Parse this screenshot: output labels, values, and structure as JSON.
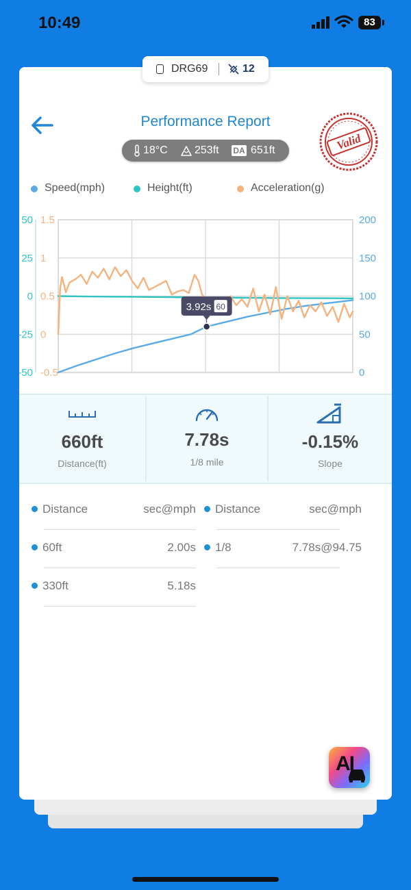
{
  "status_bar": {
    "time": "10:49",
    "battery": "83"
  },
  "device": {
    "name": "DRG69",
    "link_count": "12"
  },
  "header": {
    "title": "Performance Report",
    "stamp_text": "Valid"
  },
  "conditions": {
    "temperature": "18°C",
    "altitude": "253ft",
    "da_label": "DA",
    "density_altitude": "651ft"
  },
  "legend": [
    {
      "label": "Speed(mph)",
      "color": "#5aaae6"
    },
    {
      "label": "Height(ft)",
      "color": "#2ec4c4"
    },
    {
      "label": "Acceleration(g)",
      "color": "#f4b27e"
    }
  ],
  "chart_data": {
    "type": "line",
    "title": "",
    "xlabel": "",
    "axes": {
      "height_left": {
        "ticks": [
          "50",
          "25",
          "0",
          "-25",
          "-50"
        ],
        "range": [
          -50,
          50
        ],
        "color": "#2ec4c4"
      },
      "accel_left": {
        "ticks": [
          "1.5",
          "1",
          "0.5",
          "0",
          "-0.5"
        ],
        "range": [
          -0.5,
          1.5
        ],
        "color": "#f4b27e"
      },
      "speed_right": {
        "ticks": [
          "200",
          "150",
          "100",
          "50",
          "0"
        ],
        "range": [
          0,
          200
        ],
        "color": "#5aaae6"
      }
    },
    "x_range": [
      0,
      7.78
    ],
    "grid": true,
    "series": [
      {
        "name": "Speed(mph)",
        "axis": "speed_right",
        "color": "#5aaae6",
        "points": [
          [
            0,
            0
          ],
          [
            0.5,
            9
          ],
          [
            1,
            17
          ],
          [
            1.5,
            25
          ],
          [
            2,
            32
          ],
          [
            2.5,
            38
          ],
          [
            3,
            44
          ],
          [
            3.5,
            50
          ],
          [
            3.92,
            60
          ],
          [
            4.5,
            67
          ],
          [
            5,
            73
          ],
          [
            5.5,
            78
          ],
          [
            6,
            83
          ],
          [
            6.5,
            87
          ],
          [
            7,
            90
          ],
          [
            7.5,
            93
          ],
          [
            7.78,
            94.75
          ]
        ]
      },
      {
        "name": "Height(ft)",
        "axis": "height_left",
        "color": "#2ec4c4",
        "points": [
          [
            0,
            0
          ],
          [
            1,
            -0.3
          ],
          [
            2,
            -0.5
          ],
          [
            3,
            -0.7
          ],
          [
            4,
            -0.9
          ],
          [
            5,
            -1.1
          ],
          [
            6,
            -1.3
          ],
          [
            7,
            -1.4
          ],
          [
            7.78,
            -1.5
          ]
        ]
      },
      {
        "name": "Acceleration(g)",
        "axis": "accel_left",
        "color": "#f4b27e",
        "points": [
          [
            0,
            0
          ],
          [
            0.05,
            0.6
          ],
          [
            0.1,
            0.75
          ],
          [
            0.2,
            0.55
          ],
          [
            0.3,
            0.68
          ],
          [
            0.45,
            0.72
          ],
          [
            0.6,
            0.78
          ],
          [
            0.75,
            0.66
          ],
          [
            0.9,
            0.82
          ],
          [
            1.05,
            0.74
          ],
          [
            1.2,
            0.86
          ],
          [
            1.35,
            0.72
          ],
          [
            1.5,
            0.88
          ],
          [
            1.65,
            0.76
          ],
          [
            1.8,
            0.84
          ],
          [
            1.95,
            0.7
          ],
          [
            2.1,
            0.6
          ],
          [
            2.25,
            0.74
          ],
          [
            2.4,
            0.58
          ],
          [
            2.55,
            0.62
          ],
          [
            2.7,
            0.66
          ],
          [
            2.85,
            0.7
          ],
          [
            3,
            0.52
          ],
          [
            3.15,
            0.56
          ],
          [
            3.3,
            0.58
          ],
          [
            3.45,
            0.54
          ],
          [
            3.5,
            0.62
          ],
          [
            3.6,
            0.78
          ],
          [
            3.7,
            0.7
          ],
          [
            3.8,
            0.52
          ],
          [
            3.95,
            0.44
          ],
          [
            4.1,
            0.4
          ],
          [
            4.25,
            0.48
          ],
          [
            4.4,
            0.42
          ],
          [
            4.55,
            0.5
          ],
          [
            4.7,
            0.38
          ],
          [
            4.85,
            0.46
          ],
          [
            5,
            0.36
          ],
          [
            5.15,
            0.6
          ],
          [
            5.3,
            0.3
          ],
          [
            5.45,
            0.52
          ],
          [
            5.6,
            0.26
          ],
          [
            5.75,
            0.62
          ],
          [
            5.9,
            0.2
          ],
          [
            6.05,
            0.5
          ],
          [
            6.2,
            0.3
          ],
          [
            6.35,
            0.44
          ],
          [
            6.5,
            0.22
          ],
          [
            6.65,
            0.38
          ],
          [
            6.8,
            0.3
          ],
          [
            6.95,
            0.42
          ],
          [
            7.1,
            0.24
          ],
          [
            7.25,
            0.36
          ],
          [
            7.4,
            0.16
          ],
          [
            7.55,
            0.4
          ],
          [
            7.7,
            0.22
          ],
          [
            7.78,
            0.3
          ]
        ]
      }
    ],
    "tooltip": {
      "time": "3.92s",
      "speed": "60",
      "x": 3.92,
      "y": 60
    }
  },
  "stats": [
    {
      "value": "660ft",
      "label": "Distance(ft)",
      "icon": "ruler-icon"
    },
    {
      "value": "7.78s",
      "label": "1/8 mile",
      "icon": "speedometer-icon"
    },
    {
      "value": "-0.15%",
      "label": "Slope",
      "icon": "slope-icon"
    }
  ],
  "splits": {
    "header": {
      "key": "Distance",
      "value": "sec@mph"
    },
    "left": [
      {
        "key": "60ft",
        "value": "2.00s"
      },
      {
        "key": "330ft",
        "value": "5.18s"
      }
    ],
    "right": [
      {
        "key": "1/8",
        "value": "7.78s@94.75"
      }
    ]
  },
  "ai_button": {
    "label": "AI"
  }
}
